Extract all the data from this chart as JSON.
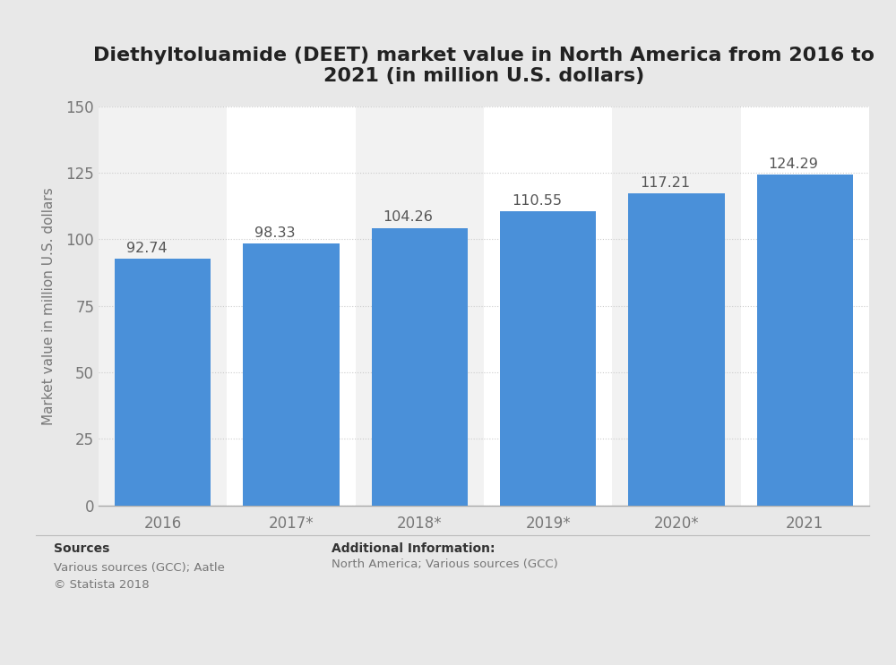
{
  "title": "Diethyltoluamide (DEET) market value in North America from 2016 to\n2021 (in million U.S. dollars)",
  "categories": [
    "2016",
    "2017*",
    "2018*",
    "2019*",
    "2020*",
    "2021"
  ],
  "values": [
    92.74,
    98.33,
    104.26,
    110.55,
    117.21,
    124.29
  ],
  "bar_color": "#4a90d9",
  "ylabel": "Market value in million U.S. dollars",
  "ylim": [
    0,
    150
  ],
  "yticks": [
    0,
    25,
    50,
    75,
    100,
    125,
    150
  ],
  "outer_bg_color": "#e8e8e8",
  "plot_bg_color": "#ffffff",
  "col_bg_even": "#f2f2f2",
  "col_bg_odd": "#ffffff",
  "title_fontsize": 16,
  "label_fontsize": 11,
  "tick_fontsize": 12,
  "bar_label_fontsize": 11.5,
  "sources_text_bold": "Sources",
  "sources_text_normal": "Various sources (GCC); Aatle\n© Statista 2018",
  "additional_info_bold": "Additional Information:",
  "additional_info_normal": "North America; Various sources (GCC)"
}
